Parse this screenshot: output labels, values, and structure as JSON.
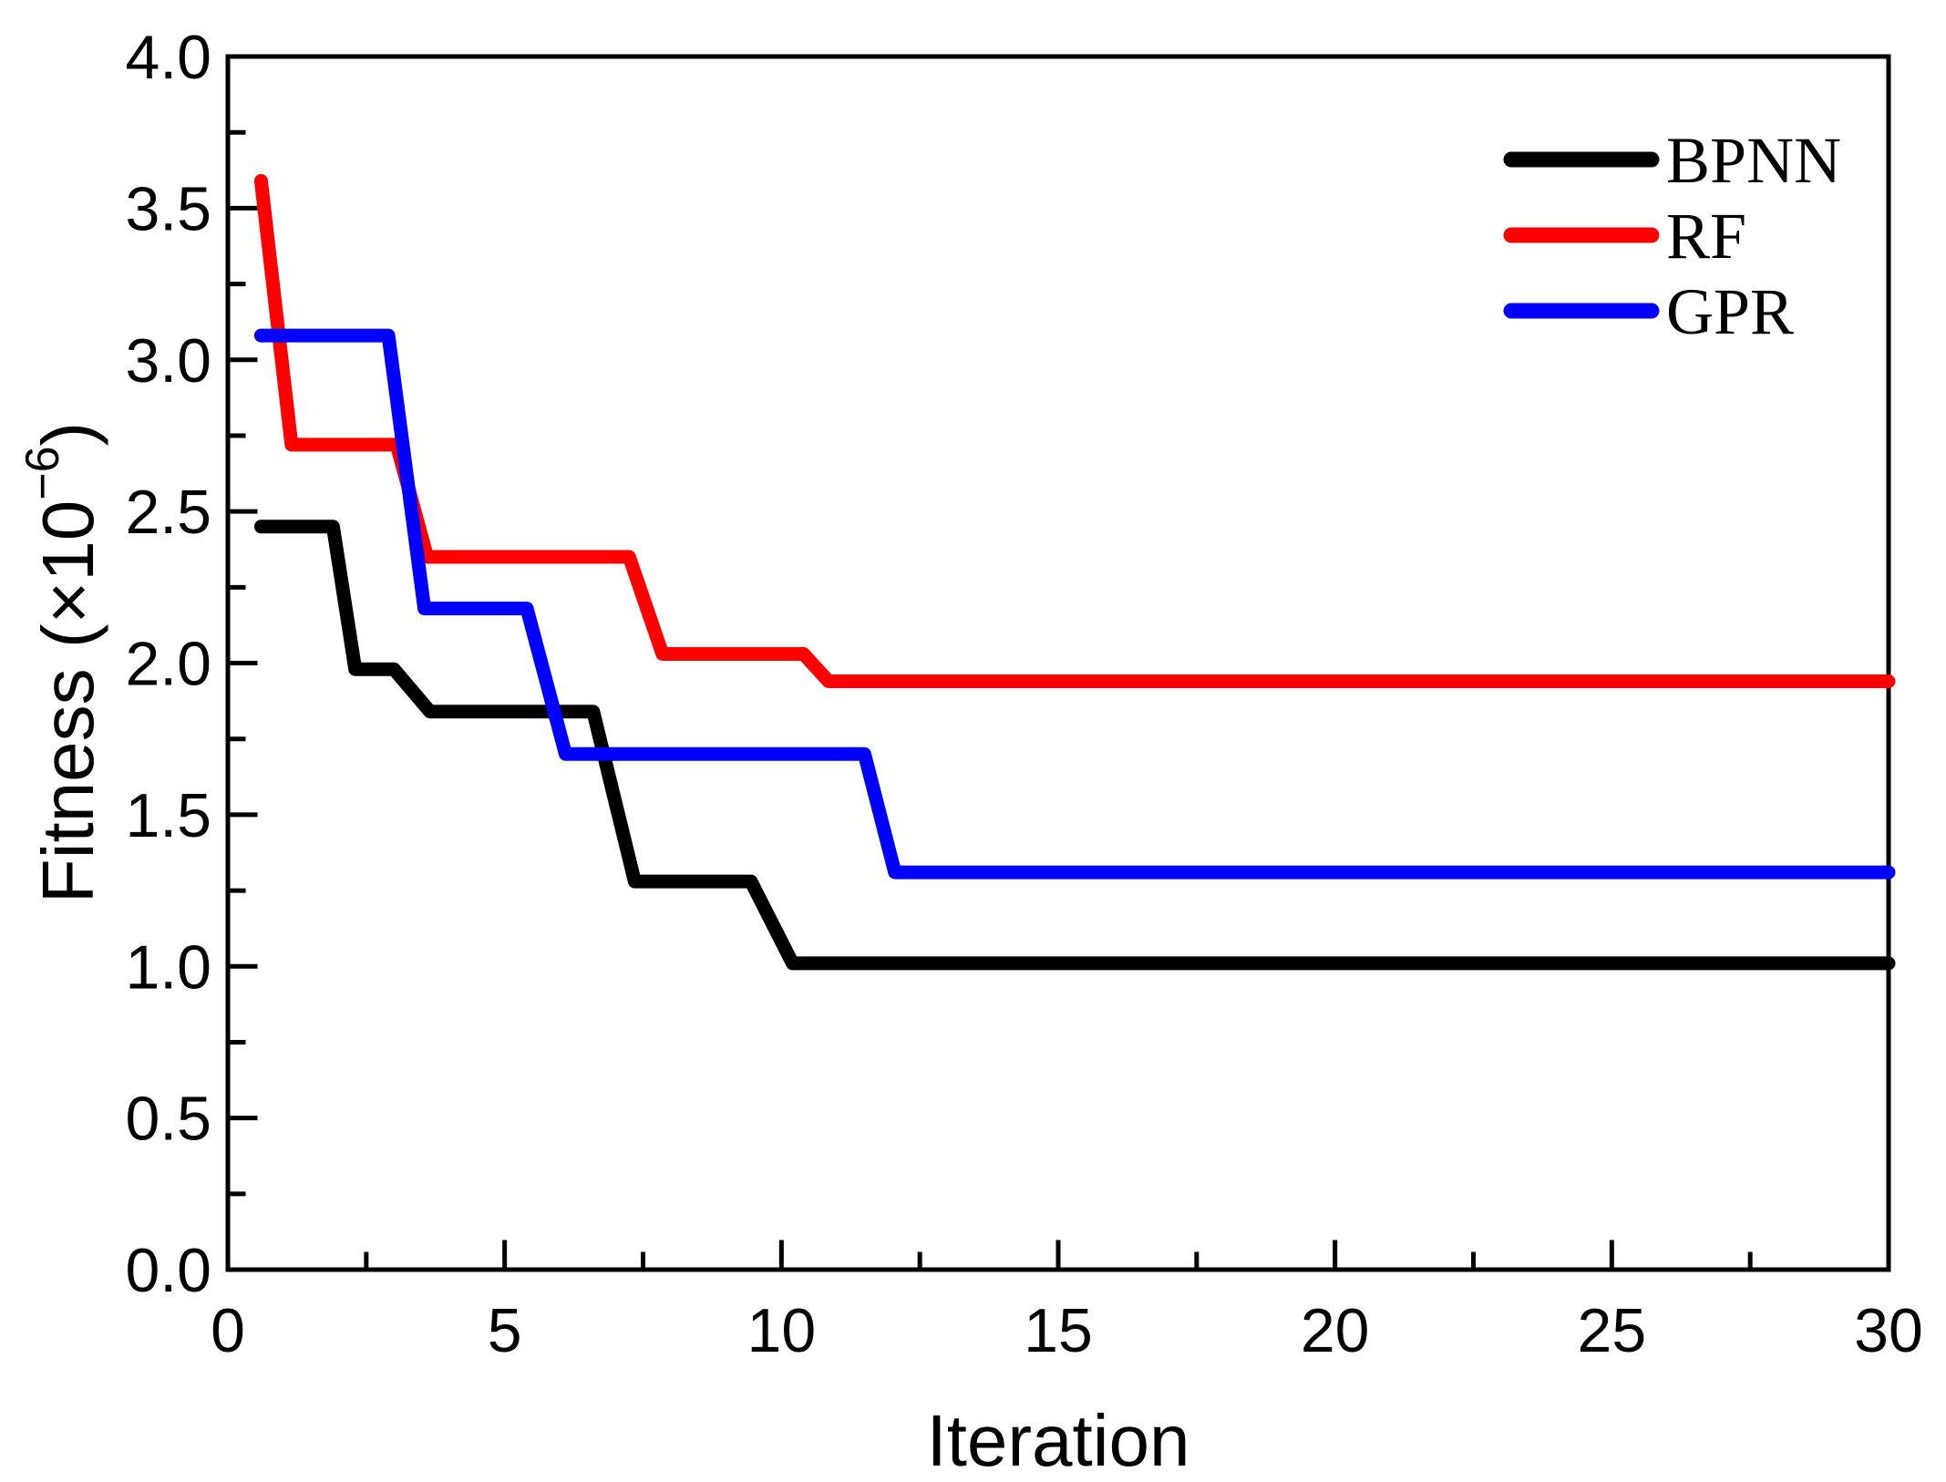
{
  "chart_data": {
    "type": "line",
    "title": "",
    "xlabel": "Iteration",
    "ylabel": "Fitness (×10⁻⁶)",
    "ylabel_parts": {
      "prefix": "Fitness (×10",
      "exponent": "−6",
      "suffix": ")"
    },
    "xlim": [
      0,
      30
    ],
    "ylim": [
      0.0,
      4.0
    ],
    "grid": false,
    "legend_position": "top-right",
    "x_major_ticks": [
      {
        "v": 0,
        "label": "0"
      },
      {
        "v": 5,
        "label": "5"
      },
      {
        "v": 10,
        "label": "10"
      },
      {
        "v": 15,
        "label": "15"
      },
      {
        "v": 20,
        "label": "20"
      },
      {
        "v": 25,
        "label": "25"
      },
      {
        "v": 30,
        "label": "30"
      }
    ],
    "x_minor_ticks": [
      2.5,
      7.5,
      12.5,
      17.5,
      22.5,
      27.5
    ],
    "y_major_ticks": [
      {
        "v": 0.0,
        "label": "0.0"
      },
      {
        "v": 0.5,
        "label": "0.5"
      },
      {
        "v": 1.0,
        "label": "1.0"
      },
      {
        "v": 1.5,
        "label": "1.5"
      },
      {
        "v": 2.0,
        "label": "2.0"
      },
      {
        "v": 2.5,
        "label": "2.5"
      },
      {
        "v": 3.0,
        "label": "3.0"
      },
      {
        "v": 3.5,
        "label": "3.5"
      },
      {
        "v": 4.0,
        "label": "4.0"
      }
    ],
    "y_minor_ticks": [
      0.25,
      0.75,
      1.25,
      1.75,
      2.25,
      2.75,
      3.25,
      3.75
    ],
    "series": [
      {
        "name": "BPNN",
        "color": "#000000",
        "points": [
          [
            0.6,
            2.45
          ],
          [
            1.9,
            2.45
          ],
          [
            2.3,
            1.98
          ],
          [
            3.0,
            1.98
          ],
          [
            3.65,
            1.84
          ],
          [
            6.6,
            1.84
          ],
          [
            7.35,
            1.28
          ],
          [
            9.45,
            1.28
          ],
          [
            10.2,
            1.01
          ],
          [
            30,
            1.01
          ]
        ]
      },
      {
        "name": "RF",
        "color": "#ff0000",
        "points": [
          [
            0.6,
            3.59
          ],
          [
            1.15,
            2.72
          ],
          [
            3.05,
            2.72
          ],
          [
            3.6,
            2.35
          ],
          [
            7.25,
            2.35
          ],
          [
            7.85,
            2.03
          ],
          [
            10.4,
            2.03
          ],
          [
            10.85,
            1.94
          ],
          [
            30,
            1.94
          ]
        ]
      },
      {
        "name": "GPR",
        "color": "#0000ff",
        "points": [
          [
            0.6,
            3.08
          ],
          [
            2.9,
            3.08
          ],
          [
            3.55,
            2.18
          ],
          [
            5.4,
            2.18
          ],
          [
            6.1,
            1.7
          ],
          [
            11.5,
            1.7
          ],
          [
            12.05,
            1.31
          ],
          [
            30,
            1.31
          ]
        ]
      }
    ]
  },
  "styles": {
    "background": "#ffffff",
    "axis_color": "#000000",
    "spine_width": 5,
    "major_tick_length": 30,
    "minor_tick_length": 17,
    "data_line_width": 15,
    "legend_swatch_width": 17
  }
}
